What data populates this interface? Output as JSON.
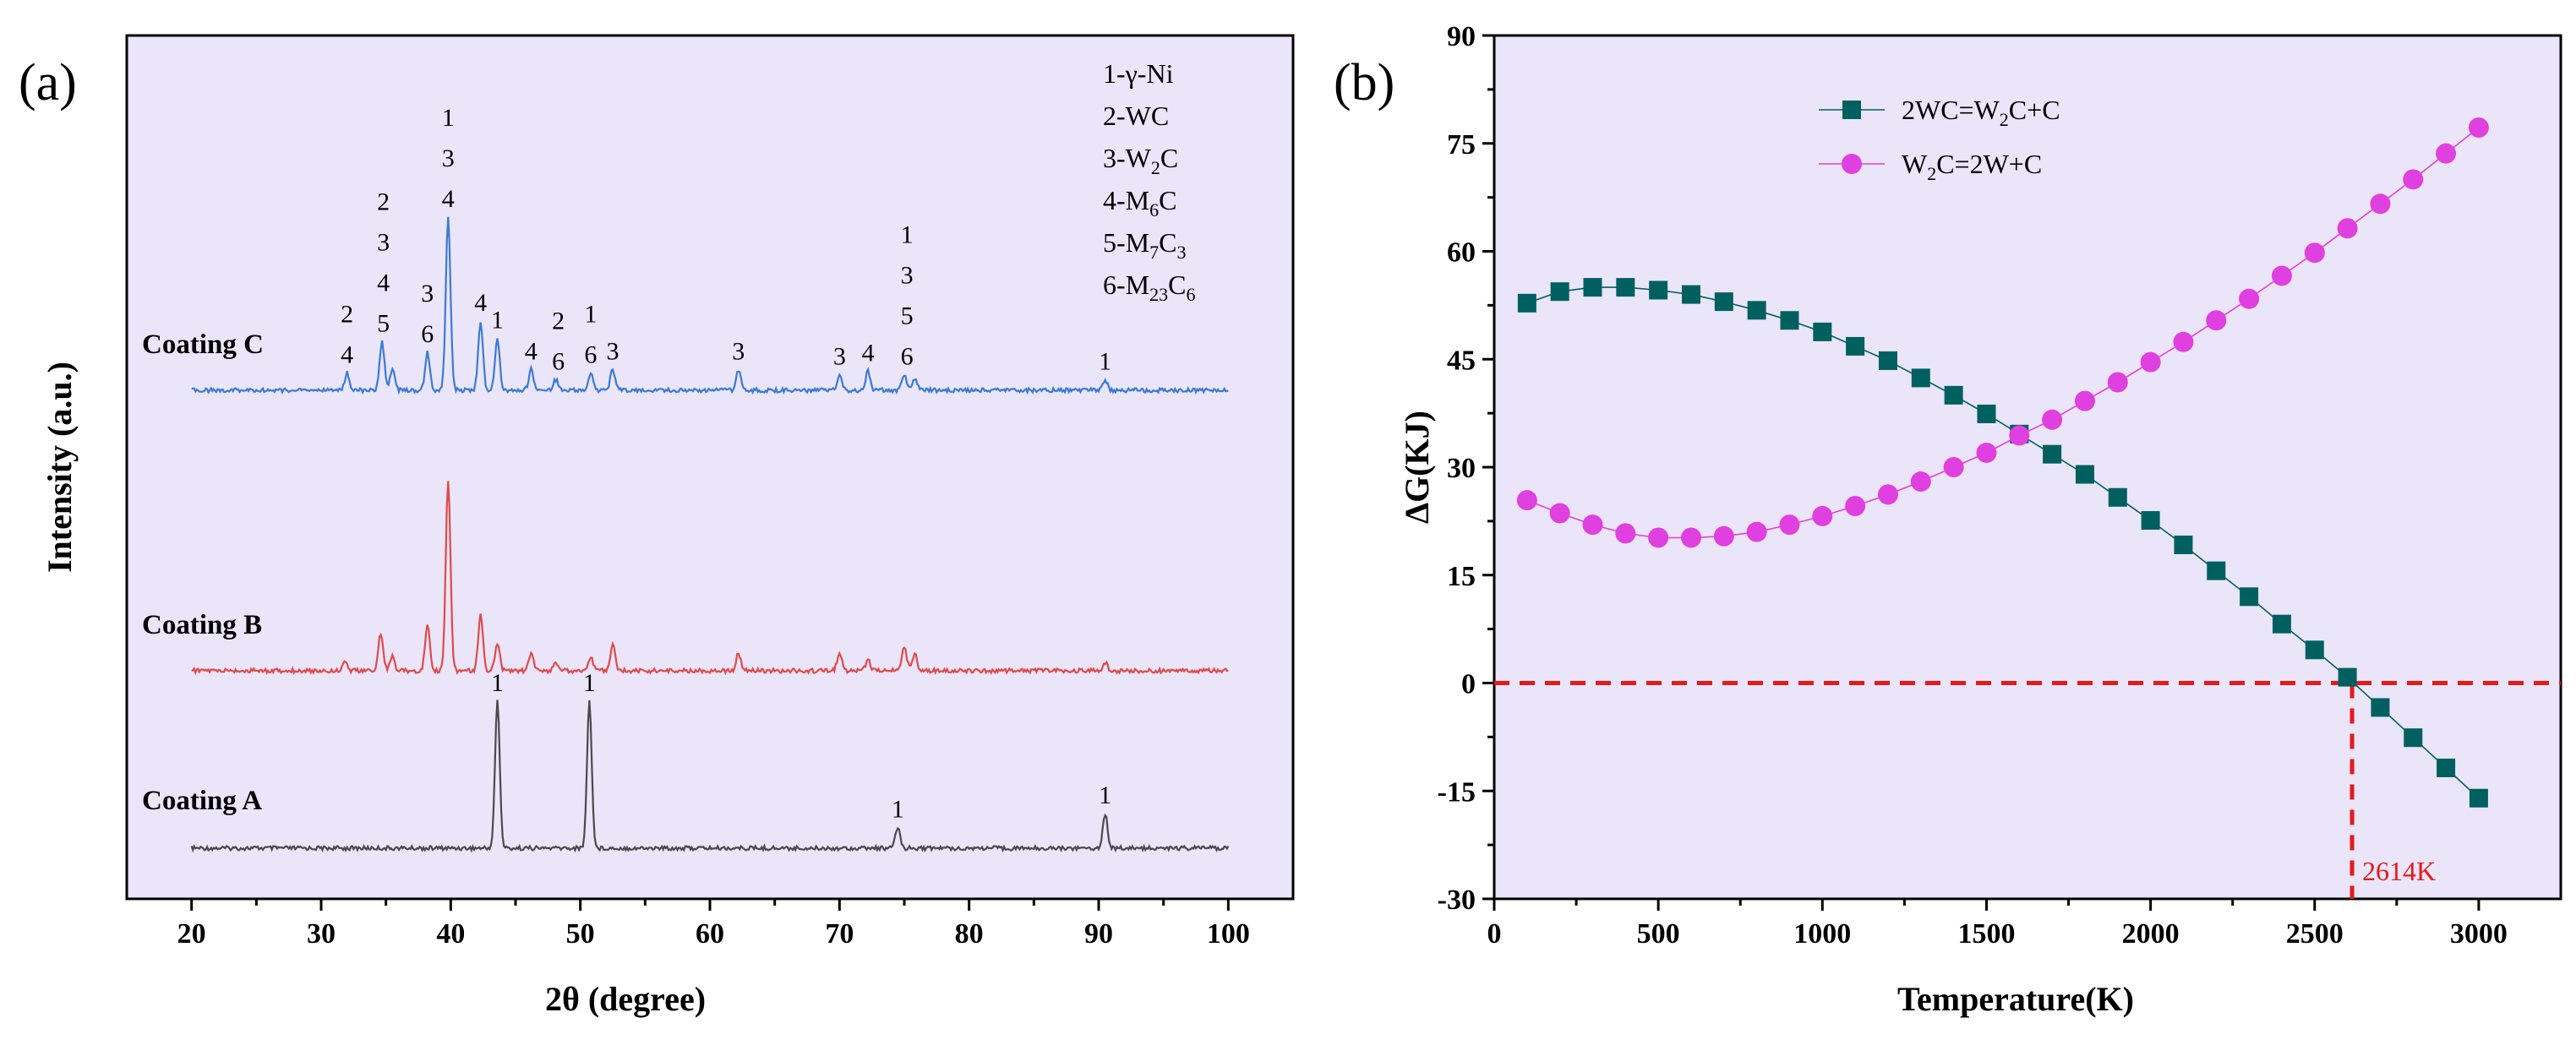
{
  "chart_data": [
    {
      "panel": "(a)",
      "type": "line",
      "xlabel": "2θ (degree)",
      "ylabel": "Intensity (a.u.)",
      "xlim": [
        15,
        105
      ],
      "xticks": [
        20,
        30,
        40,
        50,
        60,
        70,
        80,
        90,
        100
      ],
      "background": "#ebe5fa",
      "legend": [
        "1-γ-Ni",
        "2-WC",
        "3-W₂C",
        "4-M₆C",
        "5-M₇C₃",
        "6-M₂₃C₆"
      ],
      "series": [
        {
          "name": "Coating A",
          "color": "#4a4a4a",
          "peaks": [
            [
              43.6,
              0.85
            ],
            [
              50.7,
              0.85
            ],
            [
              74.5,
              0.12
            ],
            [
              90.5,
              0.2
            ]
          ],
          "peak_labels": [
            {
              "x": 43.6,
              "text": "1"
            },
            {
              "x": 50.7,
              "text": "1"
            },
            {
              "x": 74.5,
              "text": "1"
            },
            {
              "x": 90.5,
              "text": "1"
            }
          ]
        },
        {
          "name": "Coating B",
          "color": "#e04a4a",
          "peaks": [
            [
              31.8,
              0.06
            ],
            [
              34.6,
              0.22
            ],
            [
              35.5,
              0.08
            ],
            [
              38.2,
              0.26
            ],
            [
              39.8,
              1.1
            ],
            [
              42.3,
              0.32
            ],
            [
              43.6,
              0.16
            ],
            [
              46.2,
              0.1
            ],
            [
              48.1,
              0.05
            ],
            [
              50.8,
              0.08
            ],
            [
              52.5,
              0.15
            ],
            [
              62.2,
              0.1
            ],
            [
              70.0,
              0.1
            ],
            [
              72.2,
              0.06
            ],
            [
              75.0,
              0.14
            ],
            [
              75.8,
              0.1
            ],
            [
              90.5,
              0.05
            ]
          ],
          "peak_labels": []
        },
        {
          "name": "Coating C",
          "color": "#3a7ad8",
          "peaks": [
            [
              32.0,
              0.1
            ],
            [
              34.7,
              0.28
            ],
            [
              35.5,
              0.12
            ],
            [
              38.2,
              0.22
            ],
            [
              39.8,
              1.0
            ],
            [
              42.3,
              0.4
            ],
            [
              43.6,
              0.3
            ],
            [
              46.2,
              0.12
            ],
            [
              48.1,
              0.06
            ],
            [
              50.8,
              0.1
            ],
            [
              52.5,
              0.12
            ],
            [
              62.2,
              0.12
            ],
            [
              70.0,
              0.09
            ],
            [
              72.2,
              0.11
            ],
            [
              75.0,
              0.09
            ],
            [
              75.8,
              0.07
            ],
            [
              90.5,
              0.06
            ]
          ],
          "peak_labels": [
            {
              "x": 32.0,
              "text": "4"
            },
            {
              "x": 32.0,
              "text": "2"
            },
            {
              "x": 34.8,
              "text": "5"
            },
            {
              "x": 34.8,
              "text": "4"
            },
            {
              "x": 34.8,
              "text": "3"
            },
            {
              "x": 34.8,
              "text": "2"
            },
            {
              "x": 38.2,
              "text": "6"
            },
            {
              "x": 38.2,
              "text": "3"
            },
            {
              "x": 39.8,
              "text": "4"
            },
            {
              "x": 39.8,
              "text": "3"
            },
            {
              "x": 39.8,
              "text": "1"
            },
            {
              "x": 42.3,
              "text": "4"
            },
            {
              "x": 43.6,
              "text": "1"
            },
            {
              "x": 46.2,
              "text": "4"
            },
            {
              "x": 48.3,
              "text": "6"
            },
            {
              "x": 48.3,
              "text": "2"
            },
            {
              "x": 50.8,
              "text": "6"
            },
            {
              "x": 50.8,
              "text": "1"
            },
            {
              "x": 52.5,
              "text": "3"
            },
            {
              "x": 62.2,
              "text": "3"
            },
            {
              "x": 70.0,
              "text": "3"
            },
            {
              "x": 72.2,
              "text": "4"
            },
            {
              "x": 75.2,
              "text": "6"
            },
            {
              "x": 75.2,
              "text": "5"
            },
            {
              "x": 75.2,
              "text": "3"
            },
            {
              "x": 75.2,
              "text": "1"
            },
            {
              "x": 90.5,
              "text": "1"
            }
          ]
        }
      ]
    },
    {
      "panel": "(b)",
      "type": "line",
      "xlabel": "Temperature(K)",
      "ylabel": "ΔG(KJ)",
      "xlim": [
        0,
        3250
      ],
      "ylim": [
        -30,
        90
      ],
      "xticks": [
        0,
        500,
        1000,
        1500,
        2000,
        2500,
        3000
      ],
      "yticks": [
        -30,
        -15,
        0,
        15,
        30,
        45,
        60,
        75,
        90
      ],
      "background": "#ebe5fa",
      "series": [
        {
          "name": "2WC=W₂C+C",
          "color": "#006060",
          "marker": "square",
          "x": [
            100,
            200,
            300,
            400,
            500,
            600,
            700,
            800,
            900,
            1000,
            1100,
            1200,
            1300,
            1400,
            1500,
            1600,
            1700,
            1800,
            1900,
            2000,
            2100,
            2200,
            2300,
            2400,
            2500,
            2600,
            2700,
            2800,
            2900,
            3000
          ],
          "y": [
            52.8,
            54.4,
            55.0,
            55.0,
            54.6,
            54.0,
            53.0,
            51.8,
            50.4,
            48.8,
            46.8,
            44.8,
            42.4,
            40.0,
            37.4,
            34.6,
            31.8,
            29.0,
            25.8,
            22.6,
            19.2,
            15.6,
            12.0,
            8.2,
            4.6,
            0.8,
            -3.4,
            -7.6,
            -11.8,
            -16.0
          ]
        },
        {
          "name": "W₂C=2W+C",
          "color": "#e040e0",
          "marker": "circle",
          "x": [
            100,
            200,
            300,
            400,
            500,
            600,
            700,
            800,
            900,
            1000,
            1100,
            1200,
            1300,
            1400,
            1500,
            1600,
            1700,
            1800,
            1900,
            2000,
            2100,
            2200,
            2300,
            2400,
            2500,
            2600,
            2700,
            2800,
            2900,
            3000
          ],
          "y": [
            25.4,
            23.6,
            22.0,
            20.8,
            20.2,
            20.2,
            20.4,
            21.0,
            22.0,
            23.2,
            24.6,
            26.2,
            28.0,
            30.0,
            32.0,
            34.4,
            36.6,
            39.2,
            41.8,
            44.6,
            47.4,
            50.4,
            53.4,
            56.6,
            59.8,
            63.2,
            66.6,
            70.0,
            73.6,
            77.2
          ]
        }
      ],
      "reference": {
        "y": 0,
        "x": 2614,
        "color": "#e41a1c",
        "label": "2614K"
      }
    }
  ]
}
